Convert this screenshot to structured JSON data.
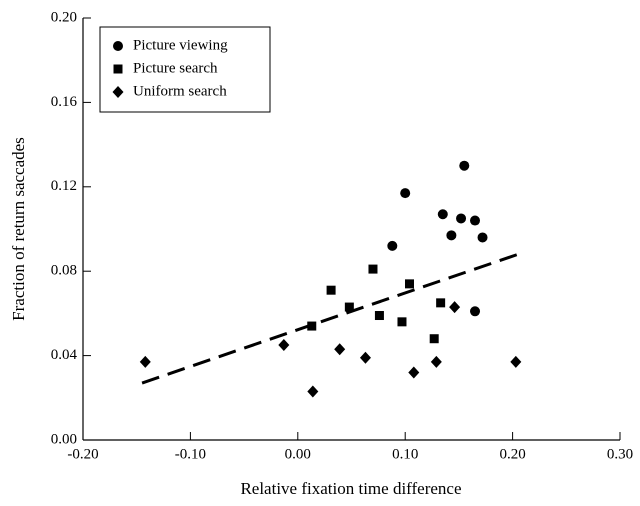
{
  "chart_data": {
    "type": "scatter",
    "xlabel": "Relative fixation time difference",
    "ylabel": "Fraction of return saccades",
    "xlim": [
      -0.2,
      0.3
    ],
    "xticks": [
      {
        "value": -0.2,
        "label": "-0.20"
      },
      {
        "value": -0.1,
        "label": "-0.10"
      },
      {
        "value": 0,
        "label": "0.00"
      },
      {
        "value": 0.1,
        "label": "0.10"
      },
      {
        "value": 0.2,
        "label": "0.20"
      },
      {
        "value": 0.3,
        "label": "0.30"
      }
    ],
    "ylim": [
      0,
      0.2
    ],
    "yticks": [
      {
        "value": 0,
        "label": "0.00"
      },
      {
        "value": 0.04,
        "label": "0.04"
      },
      {
        "value": 0.08,
        "label": "0.08"
      },
      {
        "value": 0.12,
        "label": "0.12"
      },
      {
        "value": 0.16,
        "label": "0.16"
      },
      {
        "value": 0.2,
        "label": "0.20"
      }
    ],
    "legend": "upper left",
    "series": [
      {
        "name": "Picture viewing",
        "marker": "circle",
        "color": "#000000",
        "x": [
          0.088,
          0.1,
          0.135,
          0.143,
          0.152,
          0.155,
          0.165,
          0.172,
          0.165
        ],
        "values": [
          0.092,
          0.117,
          0.107,
          0.097,
          0.105,
          0.13,
          0.104,
          0.096,
          0.061
        ]
      },
      {
        "name": "Picture search",
        "marker": "square",
        "color": "#000000",
        "x": [
          0.013,
          0.031,
          0.048,
          0.07,
          0.076,
          0.104,
          0.097,
          0.133,
          0.127
        ],
        "values": [
          0.054,
          0.071,
          0.063,
          0.081,
          0.059,
          0.074,
          0.056,
          0.065,
          0.048
        ]
      },
      {
        "name": "Uniform search",
        "marker": "diamond",
        "color": "#000000",
        "x": [
          -0.142,
          -0.013,
          0.014,
          0.039,
          0.063,
          0.108,
          0.129,
          0.146,
          0.203
        ],
        "values": [
          0.037,
          0.045,
          0.023,
          0.043,
          0.039,
          0.032,
          0.037,
          0.063,
          0.037
        ]
      }
    ],
    "fit_line": {
      "x": [
        -0.145,
        0.205
      ],
      "values": [
        0.027,
        0.088
      ],
      "style": "dashed",
      "color": "#000000"
    }
  }
}
